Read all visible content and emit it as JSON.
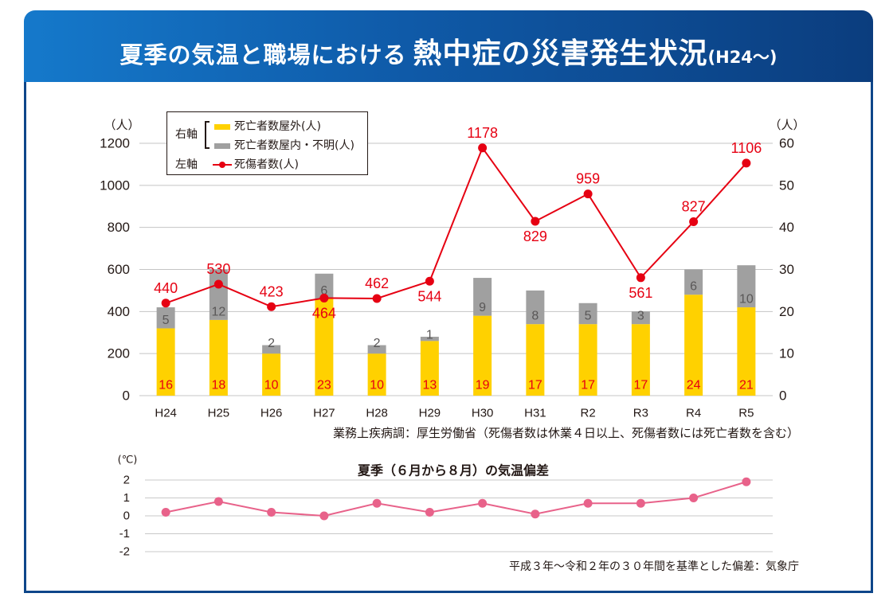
{
  "banner": {
    "title_main": "夏季の気温と職場における",
    "title_emphasis": "熱中症の災害発生状況",
    "title_period": "(H24〜)"
  },
  "chart_data": [
    {
      "type": "bar",
      "stacked": true,
      "categories": [
        "H24",
        "H25",
        "H26",
        "H27",
        "H28",
        "H29",
        "H30",
        "H31",
        "R2",
        "R3",
        "R4",
        "R5"
      ],
      "series": [
        {
          "name": "死亡者数屋外(人)",
          "type": "bar",
          "axis": "right",
          "color": "#ffd100",
          "values": [
            16,
            18,
            10,
            23,
            10,
            13,
            19,
            17,
            17,
            17,
            24,
            21
          ]
        },
        {
          "name": "死亡者数屋内・不明(人)",
          "type": "bar",
          "axis": "right",
          "color": "#a0a0a0",
          "values": [
            5,
            12,
            2,
            6,
            2,
            1,
            9,
            8,
            5,
            3,
            6,
            10
          ]
        },
        {
          "name": "死傷者数(人)",
          "type": "line",
          "axis": "left",
          "color": "#e60012",
          "values": [
            440,
            530,
            423,
            464,
            462,
            544,
            1178,
            829,
            959,
            561,
            827,
            1106
          ]
        }
      ],
      "ylabel_left": "（人）",
      "ylabel_right": "（人）",
      "ylim_left": [
        0,
        1200
      ],
      "ylim_right": [
        0,
        60
      ],
      "yticks_left": [
        0,
        200,
        400,
        600,
        800,
        1000,
        1200
      ],
      "yticks_right": [
        0,
        10,
        20,
        30,
        40,
        50,
        60
      ],
      "grid": true,
      "legend": {
        "position": "top-left",
        "right_axis_label": "右軸",
        "left_axis_label": "左軸"
      },
      "source": "業務上疾病調：厚生労働省（死傷者数は休業４日以上、死傷者数には死亡者数を含む）"
    },
    {
      "type": "line",
      "title": "夏季（６月から８月）の気温偏差",
      "color": "#e8628a",
      "values": [
        0.2,
        0.8,
        0.2,
        0.0,
        0.7,
        0.2,
        0.7,
        0.1,
        0.7,
        0.7,
        1.0,
        1.9
      ],
      "ylabel": "(℃)",
      "ylim": [
        -2,
        2
      ],
      "yticks": [
        2,
        1,
        0,
        -1,
        -2
      ],
      "grid": true,
      "source": "平成３年〜令和２年の３０年間を基準とした偏差：気象庁"
    }
  ]
}
